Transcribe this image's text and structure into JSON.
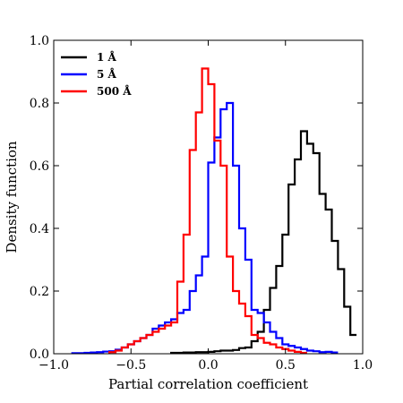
{
  "chart_data": {
    "type": "line",
    "drawstyle": "steps",
    "xlabel": "Partial correlation coefficient",
    "ylabel": "Density function",
    "xlim": [
      -1.0,
      1.0
    ],
    "ylim": [
      0.0,
      1.0
    ],
    "grid": false,
    "legend_position": "top-left",
    "x_ticks": [
      {
        "value": -1.0,
        "label": "−1.0"
      },
      {
        "value": -0.5,
        "label": "−0.5"
      },
      {
        "value": 0.0,
        "label": "0.0"
      },
      {
        "value": 0.5,
        "label": "0.5"
      },
      {
        "value": 1.0,
        "label": "1.0"
      }
    ],
    "y_ticks": [
      {
        "value": 0.0,
        "label": "0.0"
      },
      {
        "value": 0.2,
        "label": "0.2"
      },
      {
        "value": 0.4,
        "label": "0.4"
      },
      {
        "value": 0.6,
        "label": "0.6"
      },
      {
        "value": 0.8,
        "label": "0.8"
      },
      {
        "value": 1.0,
        "label": "1.0"
      }
    ],
    "series": [
      {
        "name": "1 Å",
        "color": "#000000",
        "x": [
          -0.22,
          -0.18,
          -0.14,
          -0.1,
          -0.06,
          -0.02,
          0.02,
          0.06,
          0.1,
          0.14,
          0.18,
          0.22,
          0.26,
          0.3,
          0.34,
          0.38,
          0.42,
          0.46,
          0.5,
          0.54,
          0.58,
          0.62,
          0.66,
          0.7,
          0.74,
          0.78,
          0.82,
          0.86,
          0.9,
          0.94
        ],
        "values": [
          0.003,
          0.003,
          0.004,
          0.004,
          0.005,
          0.005,
          0.006,
          0.008,
          0.01,
          0.01,
          0.012,
          0.018,
          0.02,
          0.04,
          0.07,
          0.14,
          0.21,
          0.28,
          0.38,
          0.54,
          0.62,
          0.71,
          0.67,
          0.64,
          0.51,
          0.46,
          0.36,
          0.27,
          0.15,
          0.06
        ]
      },
      {
        "name": "5 Å",
        "color": "#0000ff",
        "x": [
          -0.86,
          -0.82,
          -0.78,
          -0.74,
          -0.7,
          -0.66,
          -0.62,
          -0.58,
          -0.54,
          -0.5,
          -0.46,
          -0.42,
          -0.38,
          -0.34,
          -0.3,
          -0.26,
          -0.22,
          -0.18,
          -0.14,
          -0.1,
          -0.06,
          -0.02,
          0.02,
          0.06,
          0.1,
          0.14,
          0.18,
          0.22,
          0.26,
          0.3,
          0.34,
          0.38,
          0.42,
          0.46,
          0.5,
          0.54,
          0.58,
          0.62,
          0.66,
          0.7,
          0.74,
          0.78,
          0.82
        ],
        "values": [
          0.002,
          0.002,
          0.003,
          0.004,
          0.005,
          0.007,
          0.008,
          0.013,
          0.02,
          0.03,
          0.04,
          0.05,
          0.06,
          0.08,
          0.09,
          0.1,
          0.11,
          0.13,
          0.14,
          0.2,
          0.25,
          0.31,
          0.61,
          0.69,
          0.78,
          0.8,
          0.6,
          0.4,
          0.3,
          0.14,
          0.13,
          0.1,
          0.07,
          0.05,
          0.03,
          0.025,
          0.02,
          0.015,
          0.01,
          0.008,
          0.005,
          0.006,
          0.004
        ]
      },
      {
        "name": "500 Å",
        "color": "#ff0000",
        "x": [
          -0.62,
          -0.58,
          -0.54,
          -0.5,
          -0.46,
          -0.42,
          -0.38,
          -0.34,
          -0.3,
          -0.26,
          -0.22,
          -0.18,
          -0.14,
          -0.1,
          -0.06,
          -0.02,
          0.02,
          0.06,
          0.1,
          0.14,
          0.18,
          0.22,
          0.26,
          0.3,
          0.34,
          0.38,
          0.42,
          0.46,
          0.5,
          0.54,
          0.58,
          0.62
        ],
        "values": [
          0.005,
          0.01,
          0.02,
          0.03,
          0.04,
          0.05,
          0.06,
          0.07,
          0.08,
          0.09,
          0.1,
          0.23,
          0.38,
          0.65,
          0.77,
          0.91,
          0.86,
          0.68,
          0.6,
          0.31,
          0.2,
          0.16,
          0.12,
          0.06,
          0.05,
          0.035,
          0.03,
          0.02,
          0.015,
          0.01,
          0.006,
          0.003
        ]
      }
    ]
  }
}
